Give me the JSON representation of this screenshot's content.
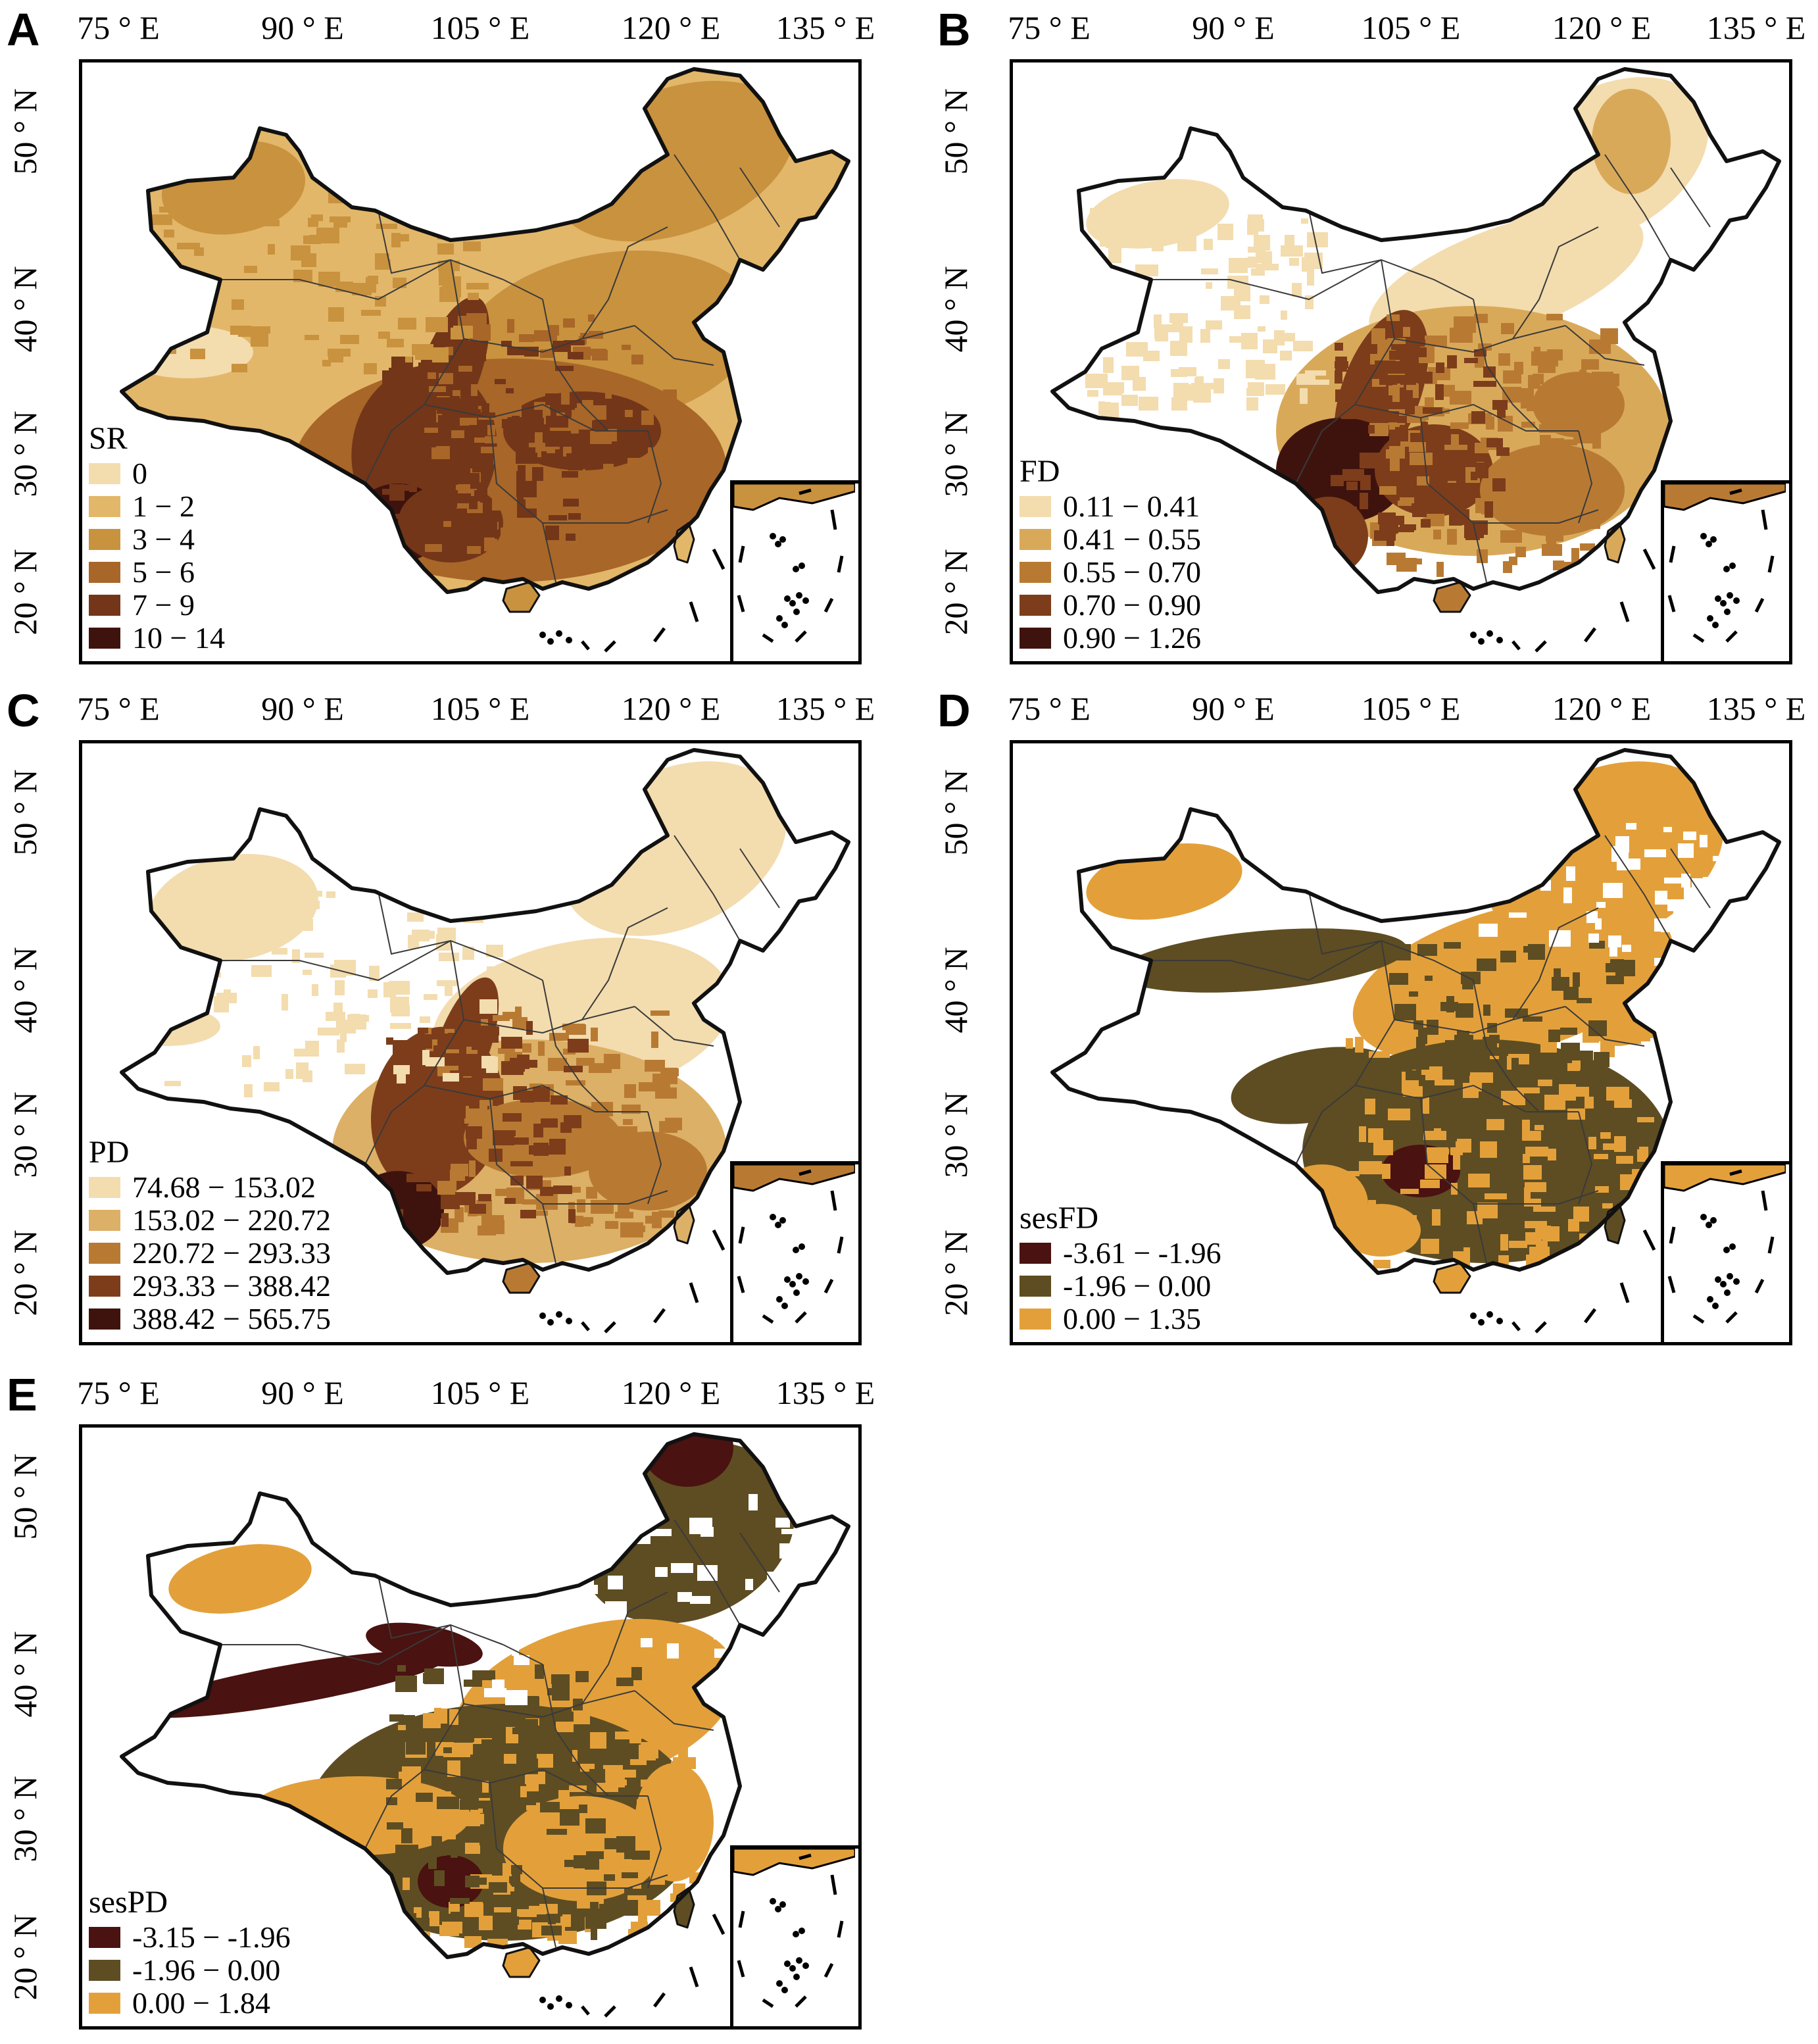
{
  "colors": {
    "outline": "#111111",
    "province_line": "#3a3a3a",
    "no_data": "#ffffff"
  },
  "panels": [
    {
      "letter": "A",
      "legend_title": "SR",
      "legend": [
        {
          "label": "0",
          "color": "#f3dcae"
        },
        {
          "label": "1 − 2",
          "color": "#e2b76a"
        },
        {
          "label": "3 − 4",
          "color": "#c9923e"
        },
        {
          "label": "5 − 6",
          "color": "#a86628"
        },
        {
          "label": "7 − 9",
          "color": "#733619"
        },
        {
          "label": "10 − 14",
          "color": "#3f130d"
        }
      ],
      "lon_ticks": [
        "75 ° E",
        "90 ° E",
        "105 ° E",
        "120 ° E",
        "135 ° E"
      ],
      "lat_ticks": [
        "50 ° N",
        "40 ° N",
        "30 ° N",
        "20 ° N"
      ]
    },
    {
      "letter": "B",
      "legend_title": "FD",
      "legend": [
        {
          "label": "0.11 − 0.41",
          "color": "#f3dcae"
        },
        {
          "label": "0.41 − 0.55",
          "color": "#d9a95a"
        },
        {
          "label": "0.55 − 0.70",
          "color": "#b87a33"
        },
        {
          "label": "0.70 − 0.90",
          "color": "#7d3d1b"
        },
        {
          "label": "0.90 − 1.26",
          "color": "#3f130d"
        }
      ],
      "lon_ticks": [
        "75 ° E",
        "90 ° E",
        "105 ° E",
        "120 ° E",
        "135 ° E"
      ],
      "lat_ticks": [
        "50 ° N",
        "40 ° N",
        "30 ° N",
        "20 ° N"
      ]
    },
    {
      "letter": "C",
      "legend_title": "PD",
      "legend": [
        {
          "label": "74.68 − 153.02",
          "color": "#f3dcae"
        },
        {
          "label": "153.02 − 220.72",
          "color": "#dcb066"
        },
        {
          "label": "220.72 − 293.33",
          "color": "#b87a33"
        },
        {
          "label": "293.33 − 388.42",
          "color": "#7d3d1b"
        },
        {
          "label": "388.42 − 565.75",
          "color": "#3f130d"
        }
      ],
      "lon_ticks": [
        "75 ° E",
        "90 ° E",
        "105 ° E",
        "120 ° E",
        "135 ° E"
      ],
      "lat_ticks": [
        "50 ° N",
        "40 ° N",
        "30 ° N",
        "20 ° N"
      ]
    },
    {
      "letter": "D",
      "legend_title": "sesFD",
      "legend": [
        {
          "label": "-3.61 − -1.96",
          "color": "#4a1210"
        },
        {
          "label": "-1.96 − 0.00",
          "color": "#5e4d22"
        },
        {
          "label": "0.00 − 1.35",
          "color": "#e3a03a"
        }
      ],
      "lon_ticks": [
        "75 ° E",
        "90 ° E",
        "105 ° E",
        "120 ° E",
        "135 ° E"
      ],
      "lat_ticks": [
        "50 ° N",
        "40 ° N",
        "30 ° N",
        "20 ° N"
      ]
    },
    {
      "letter": "E",
      "legend_title": "sesPD",
      "legend": [
        {
          "label": "-3.15 − -1.96",
          "color": "#4a1210"
        },
        {
          "label": "-1.96 − 0.00",
          "color": "#5e4d22"
        },
        {
          "label": "0.00 − 1.84",
          "color": "#e3a03a"
        }
      ],
      "lon_ticks": [
        "75 ° E",
        "90 ° E",
        "105 ° E",
        "120 ° E",
        "135 ° E"
      ],
      "lat_ticks": [
        "50 ° N",
        "40 ° N",
        "30 ° N",
        "20 ° N"
      ]
    }
  ]
}
